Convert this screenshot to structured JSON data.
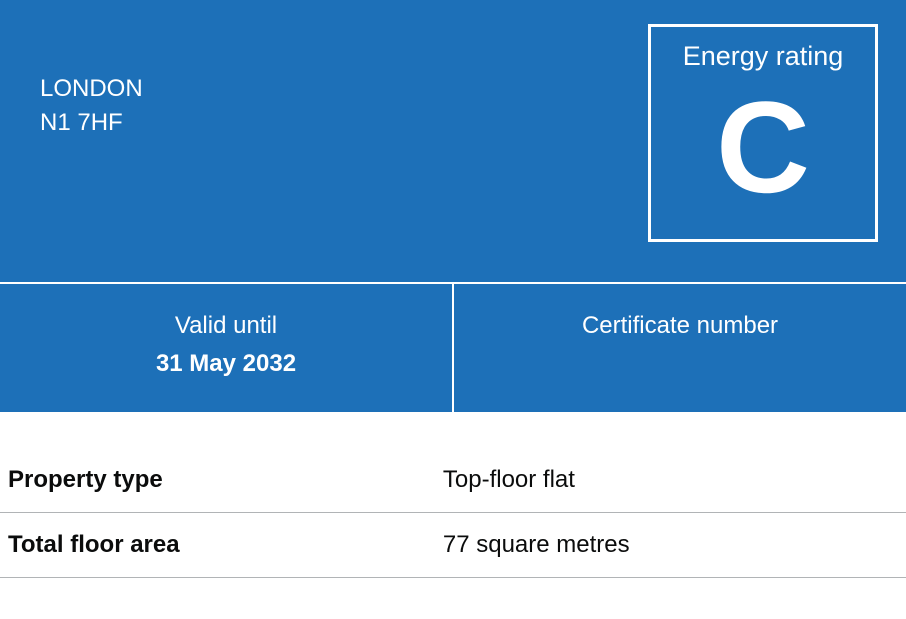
{
  "colors": {
    "panel_bg": "#1d70b8",
    "panel_text": "#ffffff",
    "body_text": "#0b0c0c",
    "divider": "#b1b4b6"
  },
  "address": {
    "city": "LONDON",
    "postcode": "N1 7HF"
  },
  "rating": {
    "label": "Energy rating",
    "letter": "C"
  },
  "validity": {
    "label": "Valid until",
    "date": "31 May 2032"
  },
  "certificate": {
    "label": "Certificate number",
    "number": ""
  },
  "details": [
    {
      "label": "Property type",
      "value": "Top-floor flat"
    },
    {
      "label": "Total floor area",
      "value": "77 square metres"
    }
  ]
}
